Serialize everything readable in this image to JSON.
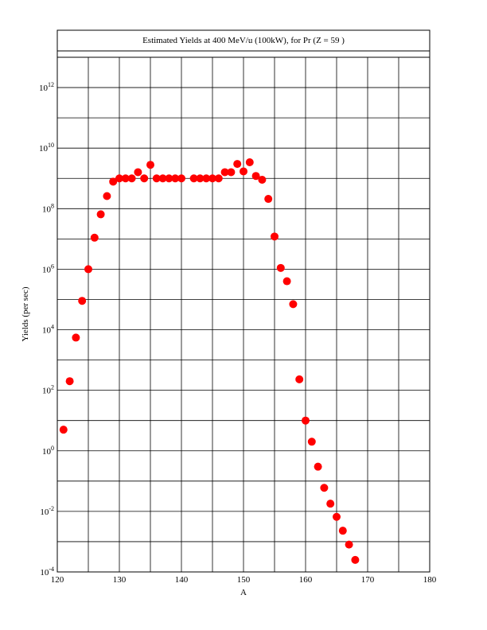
{
  "chart_data": {
    "type": "scatter",
    "title": "Estimated Yields at 400 MeV/u (100kW), for Pr (Z = 59 )",
    "x_label": "A",
    "y_label": "Yields (per sec)",
    "log_y": true,
    "grid": true,
    "color": "#ff0000",
    "x": [
      121,
      122,
      123,
      124,
      125,
      126,
      127,
      128,
      129,
      130,
      131,
      132,
      133,
      134,
      135,
      136,
      137,
      138,
      139,
      140,
      142,
      143,
      144,
      145,
      146,
      147,
      148,
      149,
      150,
      151,
      152,
      153,
      154,
      155,
      156,
      157,
      158,
      159,
      160,
      161,
      162,
      163,
      164,
      165,
      166,
      167,
      168
    ],
    "values": [
      5,
      200,
      5500,
      90000,
      1000000,
      11000000,
      65000000,
      260000000,
      780000000,
      1000000000,
      1000000000,
      1000000000,
      1600000000,
      1000000000,
      2800000000,
      1000000000,
      1000000000,
      1000000000,
      1000000000,
      1000000000,
      1000000000,
      1000000000,
      1000000000,
      1000000000,
      1000000000,
      1600000000,
      1600000000,
      3000000000,
      1700000000,
      3400000000,
      1200000000,
      900000000,
      210000000,
      12000000,
      1100000,
      400000,
      70000,
      230,
      10,
      2,
      0.3,
      0.06,
      0.018,
      0.0066,
      0.0023,
      0.0008,
      0.00025
    ],
    "xlim": [
      120,
      180
    ],
    "xticks": [
      120,
      130,
      140,
      150,
      160,
      170,
      180
    ],
    "xgrid": [
      125,
      135,
      145,
      155,
      165,
      175
    ],
    "ylim": [
      0.0001,
      10000000000000
    ],
    "yticks": [
      {
        "value": 0.0001,
        "label": "10",
        "exponent": "-4"
      },
      {
        "value": 0.01,
        "label": "10",
        "exponent": "-2"
      },
      {
        "value": 1,
        "label": "10",
        "exponent": "0"
      },
      {
        "value": 100,
        "label": "10",
        "exponent": "2"
      },
      {
        "value": 10000,
        "label": "10",
        "exponent": "4"
      },
      {
        "value": 1000000,
        "label": "10",
        "exponent": "6"
      },
      {
        "value": 100000000,
        "label": "10",
        "exponent": "8"
      },
      {
        "value": 10000000000,
        "label": "10",
        "exponent": "10"
      },
      {
        "value": 1000000000000,
        "label": "10",
        "exponent": "12"
      }
    ],
    "ygrid": [
      0.001,
      0.1,
      10,
      1000,
      100000,
      10000000,
      1000000000,
      100000000000
    ]
  }
}
